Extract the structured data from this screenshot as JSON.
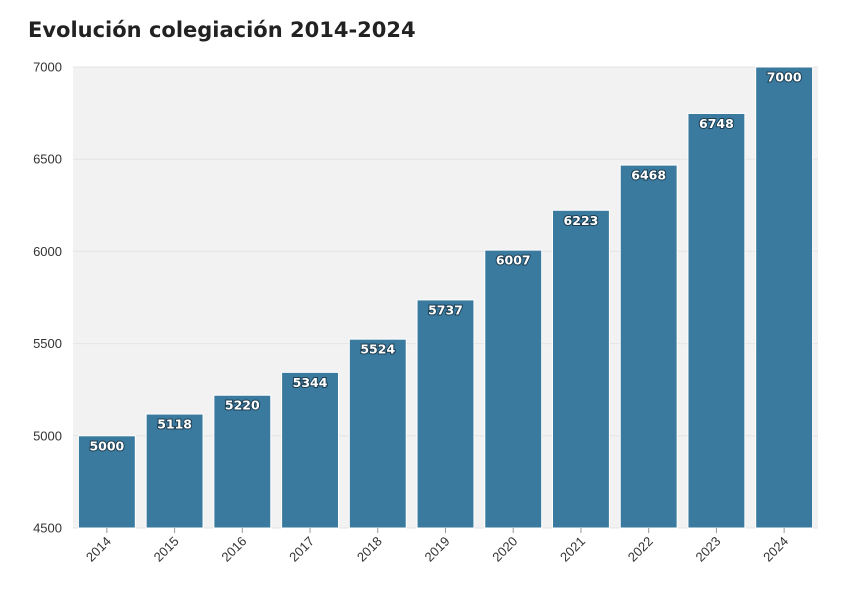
{
  "chart_data": {
    "type": "bar",
    "title": "Evolución colegiación 2014-2024",
    "xlabel": "",
    "ylabel": "",
    "categories": [
      "2014",
      "2015",
      "2016",
      "2017",
      "2018",
      "2019",
      "2020",
      "2021",
      "2022",
      "2023",
      "2024"
    ],
    "values": [
      5000,
      5118,
      5220,
      5344,
      5524,
      5737,
      6007,
      6223,
      6468,
      6748,
      7000
    ],
    "ylim": [
      4500,
      7000
    ],
    "yticks": [
      4500,
      5000,
      5500,
      6000,
      6500,
      7000
    ],
    "grid": true,
    "legend": "none",
    "bar_color": "#3a7a9e",
    "plot_background": "#f2f2f2"
  }
}
